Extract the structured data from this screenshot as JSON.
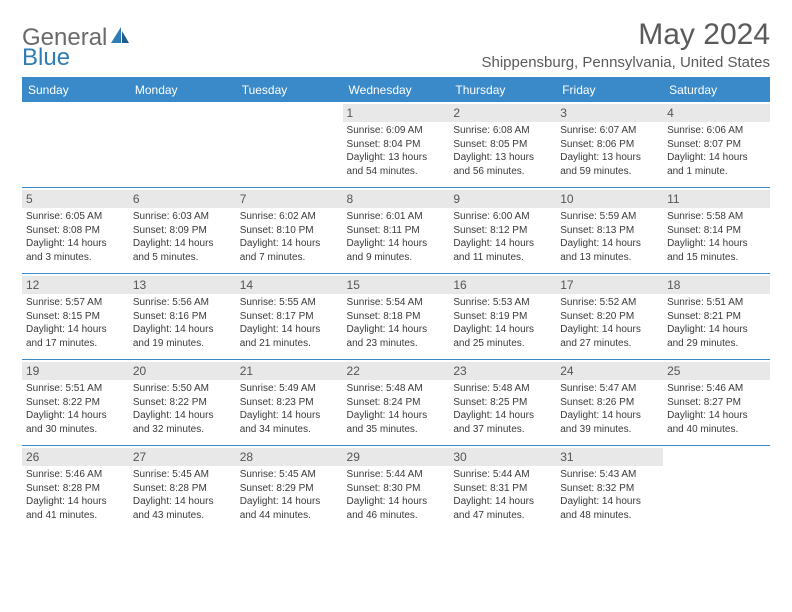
{
  "brand": {
    "part1": "General",
    "part2": "Blue"
  },
  "title": "May 2024",
  "location": "Shippensburg, Pennsylvania, United States",
  "colors": {
    "header_bg": "#3a89c9",
    "header_text": "#ffffff",
    "daynum_bg": "#e8e8e8",
    "border": "#3a89c9",
    "body_text": "#3a3a3a",
    "title_text": "#5a5a5a"
  },
  "day_headers": [
    "Sunday",
    "Monday",
    "Tuesday",
    "Wednesday",
    "Thursday",
    "Friday",
    "Saturday"
  ],
  "weeks": [
    [
      {
        "day": "",
        "sunrise": "",
        "sunset": "",
        "daylight": ""
      },
      {
        "day": "",
        "sunrise": "",
        "sunset": "",
        "daylight": ""
      },
      {
        "day": "",
        "sunrise": "",
        "sunset": "",
        "daylight": ""
      },
      {
        "day": "1",
        "sunrise": "Sunrise: 6:09 AM",
        "sunset": "Sunset: 8:04 PM",
        "daylight": "Daylight: 13 hours and 54 minutes."
      },
      {
        "day": "2",
        "sunrise": "Sunrise: 6:08 AM",
        "sunset": "Sunset: 8:05 PM",
        "daylight": "Daylight: 13 hours and 56 minutes."
      },
      {
        "day": "3",
        "sunrise": "Sunrise: 6:07 AM",
        "sunset": "Sunset: 8:06 PM",
        "daylight": "Daylight: 13 hours and 59 minutes."
      },
      {
        "day": "4",
        "sunrise": "Sunrise: 6:06 AM",
        "sunset": "Sunset: 8:07 PM",
        "daylight": "Daylight: 14 hours and 1 minute."
      }
    ],
    [
      {
        "day": "5",
        "sunrise": "Sunrise: 6:05 AM",
        "sunset": "Sunset: 8:08 PM",
        "daylight": "Daylight: 14 hours and 3 minutes."
      },
      {
        "day": "6",
        "sunrise": "Sunrise: 6:03 AM",
        "sunset": "Sunset: 8:09 PM",
        "daylight": "Daylight: 14 hours and 5 minutes."
      },
      {
        "day": "7",
        "sunrise": "Sunrise: 6:02 AM",
        "sunset": "Sunset: 8:10 PM",
        "daylight": "Daylight: 14 hours and 7 minutes."
      },
      {
        "day": "8",
        "sunrise": "Sunrise: 6:01 AM",
        "sunset": "Sunset: 8:11 PM",
        "daylight": "Daylight: 14 hours and 9 minutes."
      },
      {
        "day": "9",
        "sunrise": "Sunrise: 6:00 AM",
        "sunset": "Sunset: 8:12 PM",
        "daylight": "Daylight: 14 hours and 11 minutes."
      },
      {
        "day": "10",
        "sunrise": "Sunrise: 5:59 AM",
        "sunset": "Sunset: 8:13 PM",
        "daylight": "Daylight: 14 hours and 13 minutes."
      },
      {
        "day": "11",
        "sunrise": "Sunrise: 5:58 AM",
        "sunset": "Sunset: 8:14 PM",
        "daylight": "Daylight: 14 hours and 15 minutes."
      }
    ],
    [
      {
        "day": "12",
        "sunrise": "Sunrise: 5:57 AM",
        "sunset": "Sunset: 8:15 PM",
        "daylight": "Daylight: 14 hours and 17 minutes."
      },
      {
        "day": "13",
        "sunrise": "Sunrise: 5:56 AM",
        "sunset": "Sunset: 8:16 PM",
        "daylight": "Daylight: 14 hours and 19 minutes."
      },
      {
        "day": "14",
        "sunrise": "Sunrise: 5:55 AM",
        "sunset": "Sunset: 8:17 PM",
        "daylight": "Daylight: 14 hours and 21 minutes."
      },
      {
        "day": "15",
        "sunrise": "Sunrise: 5:54 AM",
        "sunset": "Sunset: 8:18 PM",
        "daylight": "Daylight: 14 hours and 23 minutes."
      },
      {
        "day": "16",
        "sunrise": "Sunrise: 5:53 AM",
        "sunset": "Sunset: 8:19 PM",
        "daylight": "Daylight: 14 hours and 25 minutes."
      },
      {
        "day": "17",
        "sunrise": "Sunrise: 5:52 AM",
        "sunset": "Sunset: 8:20 PM",
        "daylight": "Daylight: 14 hours and 27 minutes."
      },
      {
        "day": "18",
        "sunrise": "Sunrise: 5:51 AM",
        "sunset": "Sunset: 8:21 PM",
        "daylight": "Daylight: 14 hours and 29 minutes."
      }
    ],
    [
      {
        "day": "19",
        "sunrise": "Sunrise: 5:51 AM",
        "sunset": "Sunset: 8:22 PM",
        "daylight": "Daylight: 14 hours and 30 minutes."
      },
      {
        "day": "20",
        "sunrise": "Sunrise: 5:50 AM",
        "sunset": "Sunset: 8:22 PM",
        "daylight": "Daylight: 14 hours and 32 minutes."
      },
      {
        "day": "21",
        "sunrise": "Sunrise: 5:49 AM",
        "sunset": "Sunset: 8:23 PM",
        "daylight": "Daylight: 14 hours and 34 minutes."
      },
      {
        "day": "22",
        "sunrise": "Sunrise: 5:48 AM",
        "sunset": "Sunset: 8:24 PM",
        "daylight": "Daylight: 14 hours and 35 minutes."
      },
      {
        "day": "23",
        "sunrise": "Sunrise: 5:48 AM",
        "sunset": "Sunset: 8:25 PM",
        "daylight": "Daylight: 14 hours and 37 minutes."
      },
      {
        "day": "24",
        "sunrise": "Sunrise: 5:47 AM",
        "sunset": "Sunset: 8:26 PM",
        "daylight": "Daylight: 14 hours and 39 minutes."
      },
      {
        "day": "25",
        "sunrise": "Sunrise: 5:46 AM",
        "sunset": "Sunset: 8:27 PM",
        "daylight": "Daylight: 14 hours and 40 minutes."
      }
    ],
    [
      {
        "day": "26",
        "sunrise": "Sunrise: 5:46 AM",
        "sunset": "Sunset: 8:28 PM",
        "daylight": "Daylight: 14 hours and 41 minutes."
      },
      {
        "day": "27",
        "sunrise": "Sunrise: 5:45 AM",
        "sunset": "Sunset: 8:28 PM",
        "daylight": "Daylight: 14 hours and 43 minutes."
      },
      {
        "day": "28",
        "sunrise": "Sunrise: 5:45 AM",
        "sunset": "Sunset: 8:29 PM",
        "daylight": "Daylight: 14 hours and 44 minutes."
      },
      {
        "day": "29",
        "sunrise": "Sunrise: 5:44 AM",
        "sunset": "Sunset: 8:30 PM",
        "daylight": "Daylight: 14 hours and 46 minutes."
      },
      {
        "day": "30",
        "sunrise": "Sunrise: 5:44 AM",
        "sunset": "Sunset: 8:31 PM",
        "daylight": "Daylight: 14 hours and 47 minutes."
      },
      {
        "day": "31",
        "sunrise": "Sunrise: 5:43 AM",
        "sunset": "Sunset: 8:32 PM",
        "daylight": "Daylight: 14 hours and 48 minutes."
      },
      {
        "day": "",
        "sunrise": "",
        "sunset": "",
        "daylight": ""
      }
    ]
  ]
}
